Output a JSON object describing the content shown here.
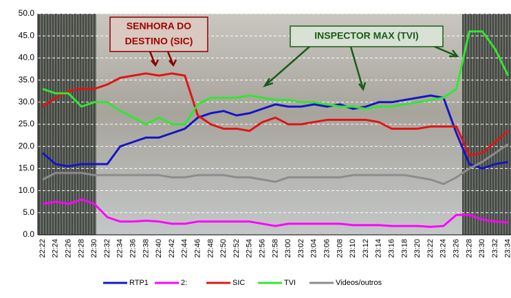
{
  "chart_data": {
    "type": "line",
    "categories": [
      "22:22",
      "22:24",
      "22:26",
      "22:28",
      "22:30",
      "22:32",
      "22:34",
      "22:36",
      "22:38",
      "22:40",
      "22:42",
      "22:44",
      "22:46",
      "22:48",
      "22:50",
      "22:52",
      "22:54",
      "22:56",
      "22:58",
      "23:00",
      "23:02",
      "23:04",
      "23:06",
      "23:08",
      "23:10",
      "23:12",
      "23:14",
      "23:16",
      "23:18",
      "23:20",
      "23:22",
      "23:24",
      "23:26",
      "23:28",
      "23:30",
      "23:32",
      "23:34"
    ],
    "series": [
      {
        "name": "RTP1",
        "color": "#1414c8",
        "values": [
          18.5,
          16,
          15.5,
          16,
          16,
          16,
          20,
          21,
          22,
          22,
          23,
          24,
          26.5,
          27.5,
          28,
          27,
          27.5,
          28.5,
          29.5,
          29,
          29,
          29.5,
          29,
          29.5,
          28.5,
          29,
          30,
          30,
          30.5,
          31,
          31.5,
          31,
          23,
          16,
          15,
          16,
          16.5
        ]
      },
      {
        "name": "2:",
        "color": "#ff00ff",
        "values": [
          7,
          7.5,
          7,
          8,
          7,
          4,
          3,
          3,
          3.2,
          3,
          2.5,
          2.5,
          3,
          3,
          3,
          3,
          3,
          2.5,
          2,
          2.5,
          2.5,
          2.5,
          2.5,
          2.5,
          2.2,
          2.2,
          2.2,
          2,
          2,
          2,
          1.8,
          2,
          4.5,
          4.5,
          3.5,
          3,
          2.8
        ]
      },
      {
        "name": "SIC",
        "color": "#e01414",
        "values": [
          29,
          31,
          32.5,
          33,
          33,
          34,
          35.5,
          36,
          36.5,
          36,
          36.5,
          36,
          27,
          25,
          24,
          24,
          23.5,
          25.5,
          26.5,
          25,
          25,
          25.5,
          26,
          26,
          26,
          26,
          25.5,
          24,
          24,
          24,
          24.5,
          24.5,
          24.5,
          18,
          18.5,
          21,
          23.5
        ]
      },
      {
        "name": "TVI",
        "color": "#32e632",
        "values": [
          33,
          32,
          32,
          29,
          30,
          30,
          28,
          26.5,
          25,
          26.5,
          25,
          25,
          29.5,
          31,
          31,
          31,
          31.5,
          31,
          30.5,
          30.5,
          30,
          30,
          29.5,
          29,
          29,
          28.5,
          29,
          29,
          29.5,
          30,
          30.5,
          31,
          33,
          46,
          46,
          42,
          36
        ]
      },
      {
        "name": "Videos/outros",
        "color": "#8c8c8c",
        "values": [
          12.5,
          14,
          14,
          14,
          13.5,
          13.5,
          13.5,
          13.5,
          13.5,
          13.5,
          13,
          13,
          13.5,
          13.5,
          13.5,
          13,
          13,
          12.5,
          12,
          13,
          13,
          13,
          13,
          13,
          13.5,
          13.5,
          13.5,
          13.5,
          13.5,
          13,
          12.5,
          11.5,
          13,
          15,
          16.5,
          18.5,
          20.5
        ]
      }
    ],
    "ylim": [
      0,
      50
    ],
    "yticks": [
      {
        "value": 0,
        "label": "0.0"
      },
      {
        "value": 5,
        "label": "5.0"
      },
      {
        "value": 10,
        "label": "10.0"
      },
      {
        "value": 15,
        "label": "15.0"
      },
      {
        "value": 20,
        "label": "20.0"
      },
      {
        "value": 25,
        "label": "25.0"
      },
      {
        "value": 30,
        "label": "30.0"
      },
      {
        "value": 35,
        "label": "35.0"
      },
      {
        "value": 40,
        "label": "40.0"
      },
      {
        "value": 45,
        "label": "45.0"
      },
      {
        "value": 50,
        "label": "50.0"
      }
    ],
    "grid": true,
    "legend": "bottom",
    "annotations": [
      [
        "SENHORA DO",
        "DESTINO (SIC)"
      ],
      [
        "INSPECTOR MAX (TVI)"
      ]
    ]
  }
}
